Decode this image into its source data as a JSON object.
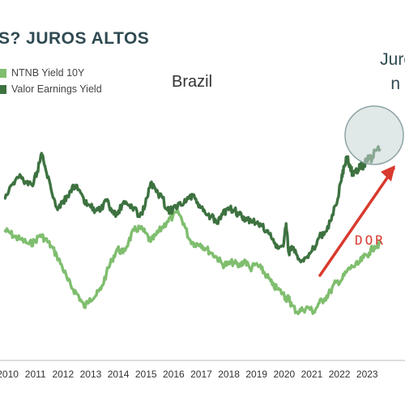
{
  "header": {
    "title": "S? JUROS ALTOS",
    "right_line1": "Juro",
    "right_line2": "n"
  },
  "chart_data": {
    "type": "line",
    "title": "Brazil",
    "xlabel": "",
    "ylabel": "",
    "x_ticks": [
      "2010",
      "2011",
      "2012",
      "2013",
      "2014",
      "2015",
      "2016",
      "2017",
      "2018",
      "2019",
      "2020",
      "2021",
      "2022",
      "2023"
    ],
    "xlim": [
      2009.75,
      2024.4
    ],
    "ylim": [
      0,
      100
    ],
    "series": [
      {
        "name": "NTNB Yield 10Y",
        "color": "#7fbe6e",
        "x": [
          2009.9,
          2010.1,
          2010.3,
          2010.5,
          2010.8,
          2011.0,
          2011.2,
          2011.4,
          2011.6,
          2011.8,
          2012.0,
          2012.2,
          2012.4,
          2012.6,
          2012.8,
          2013.0,
          2013.2,
          2013.4,
          2013.6,
          2013.8,
          2014.0,
          2014.2,
          2014.4,
          2014.6,
          2014.8,
          2015.0,
          2015.2,
          2015.4,
          2015.6,
          2015.8,
          2016.0,
          2016.2,
          2016.4,
          2016.6,
          2016.8,
          2017.0,
          2017.2,
          2017.4,
          2017.6,
          2017.8,
          2018.0,
          2018.2,
          2018.4,
          2018.6,
          2018.8,
          2019.0,
          2019.2,
          2019.4,
          2019.6,
          2019.8,
          2020.0,
          2020.1,
          2020.2,
          2020.3,
          2020.5,
          2020.7,
          2020.9,
          2021.1,
          2021.3,
          2021.5,
          2021.7,
          2021.9,
          2022.1,
          2022.3,
          2022.5,
          2022.7,
          2022.9,
          2023.1,
          2023.3,
          2023.5
        ],
        "values": [
          52,
          51,
          49,
          48,
          46,
          47,
          50,
          48,
          45,
          41,
          36,
          30,
          26,
          23,
          18,
          22,
          23,
          26,
          33,
          39,
          44,
          42,
          47,
          52,
          53,
          51,
          47,
          50,
          53,
          56,
          58,
          60,
          55,
          48,
          46,
          46,
          44,
          42,
          40,
          37,
          37,
          38,
          36,
          39,
          35,
          37,
          35,
          32,
          28,
          26,
          24,
          22,
          22,
          19,
          16,
          17,
          18,
          16,
          20,
          22,
          25,
          29,
          30,
          34,
          36,
          37,
          40,
          42,
          45,
          46
        ]
      },
      {
        "name": "Valor Earnings Yield",
        "color": "#3d7240",
        "x": [
          2009.9,
          2010.1,
          2010.3,
          2010.5,
          2010.7,
          2010.9,
          2011.1,
          2011.25,
          2011.4,
          2011.6,
          2011.8,
          2012.0,
          2012.2,
          2012.4,
          2012.6,
          2012.8,
          2013.0,
          2013.2,
          2013.4,
          2013.6,
          2013.8,
          2014.0,
          2014.2,
          2014.4,
          2014.6,
          2014.8,
          2015.0,
          2015.2,
          2015.4,
          2015.6,
          2015.8,
          2016.0,
          2016.2,
          2016.4,
          2016.6,
          2016.8,
          2017.0,
          2017.2,
          2017.4,
          2017.6,
          2017.8,
          2018.0,
          2018.2,
          2018.4,
          2018.6,
          2018.8,
          2019.0,
          2019.2,
          2019.4,
          2019.6,
          2019.8,
          2020.0,
          2020.1,
          2020.2,
          2020.3,
          2020.5,
          2020.7,
          2020.9,
          2021.1,
          2021.3,
          2021.5,
          2021.7,
          2021.9,
          2022.1,
          2022.2,
          2022.3,
          2022.4,
          2022.5,
          2022.6,
          2022.7,
          2022.8,
          2022.9,
          2023.0,
          2023.1,
          2023.2,
          2023.3,
          2023.5
        ],
        "values": [
          66,
          71,
          74,
          76,
          73,
          72,
          78,
          86,
          79,
          70,
          62,
          64,
          67,
          72,
          70,
          64,
          63,
          61,
          61,
          65,
          60,
          59,
          64,
          63,
          62,
          58,
          63,
          73,
          69,
          67,
          61,
          61,
          64,
          64,
          67,
          66,
          62,
          59,
          58,
          55,
          59,
          62,
          61,
          59,
          56,
          57,
          55,
          54,
          52,
          48,
          44,
          45,
          55,
          42,
          45,
          41,
          39,
          40,
          44,
          49,
          51,
          56,
          63,
          74,
          80,
          84,
          81,
          77,
          78,
          79,
          81,
          80,
          83,
          84,
          83,
          87,
          88
        ]
      }
    ],
    "annotations": [
      {
        "text": "DOR"
      }
    ],
    "grid": false,
    "legend": "top-left"
  }
}
